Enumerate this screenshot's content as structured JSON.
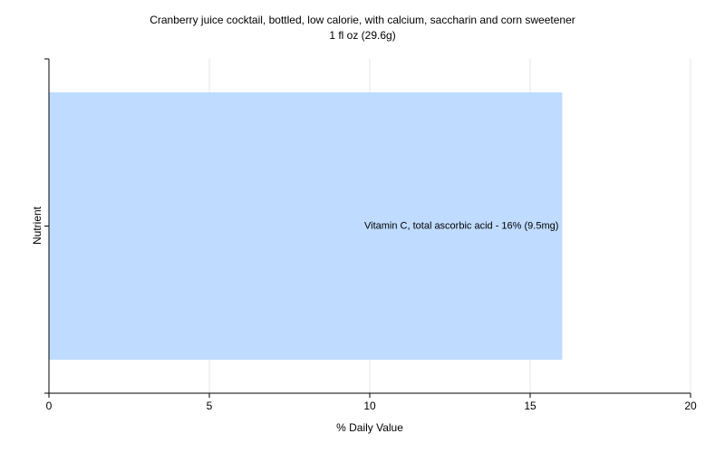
{
  "chart_data": {
    "type": "hbar",
    "title": "Cranberry juice cocktail, bottled, low calorie, with calcium, saccharin and corn sweetener",
    "subtitle": "1 fl oz (29.6g)",
    "x_label": "% Daily Value",
    "y_label": "Nutrient",
    "categories": [
      null
    ],
    "values": [
      16
    ],
    "value_labels": [
      "Vitamin C, total ascorbic acid - 16% (9.5mg)"
    ],
    "color": "#bfdbff",
    "xlim": [
      0,
      20
    ],
    "xticks": [
      0,
      5,
      10,
      15,
      20
    ],
    "grid": true
  }
}
